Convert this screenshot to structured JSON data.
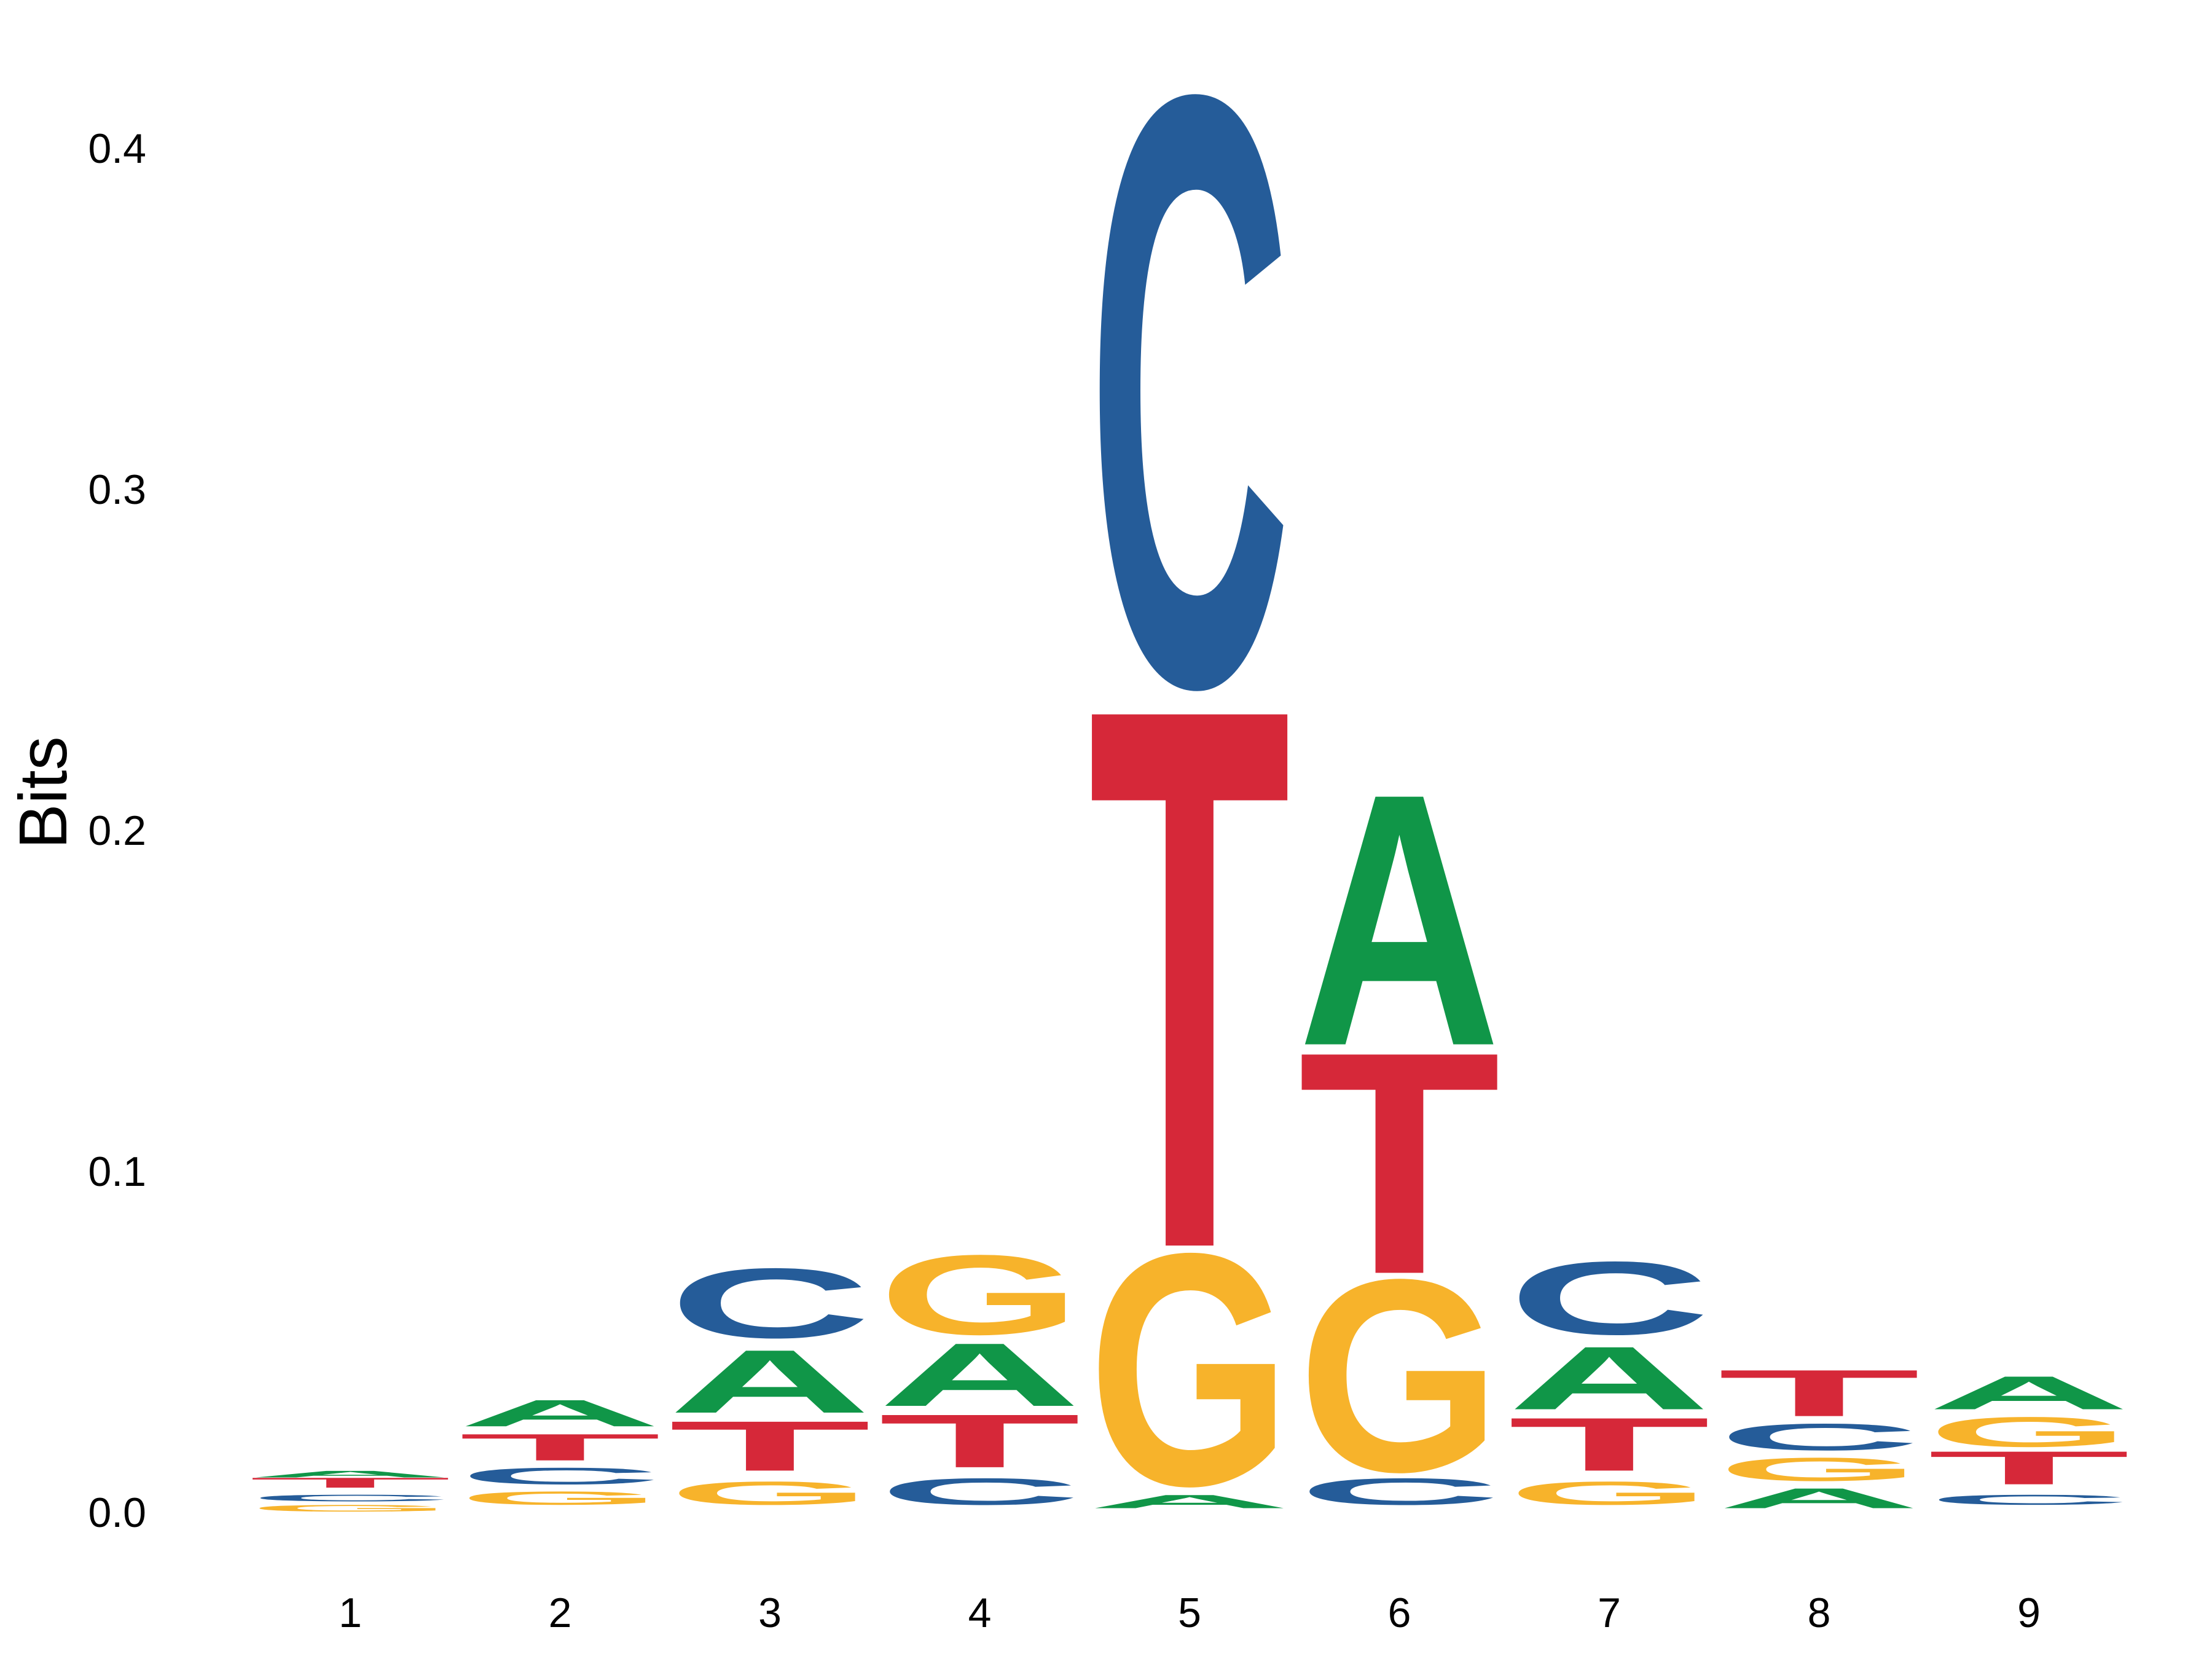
{
  "chart_data": {
    "type": "sequence-logo",
    "ylabel": "Bits",
    "ylim": [
      0,
      0.44
    ],
    "yticks": [
      "0.0",
      "0.1",
      "0.2",
      "0.3",
      "0.4"
    ],
    "ytick_values": [
      0,
      0.1,
      0.2,
      0.3,
      0.4
    ],
    "positions": [
      "1",
      "2",
      "3",
      "4",
      "5",
      "6",
      "7",
      "8",
      "9"
    ],
    "grid": false,
    "legend": "none",
    "colors": {
      "A": "#109648",
      "C": "#255C99",
      "G": "#F7B32B",
      "T": "#D62839"
    },
    "columns": [
      {
        "position": "1",
        "letters": [
          {
            "base": "G",
            "low": 0.0,
            "high": 0.002
          },
          {
            "base": "C",
            "low": 0.003,
            "high": 0.005
          },
          {
            "base": "T",
            "low": 0.007,
            "high": 0.01
          },
          {
            "base": "A",
            "low": 0.01,
            "high": 0.012
          }
        ]
      },
      {
        "position": "2",
        "letters": [
          {
            "base": "G",
            "low": 0.002,
            "high": 0.006
          },
          {
            "base": "C",
            "low": 0.008,
            "high": 0.013
          },
          {
            "base": "T",
            "low": 0.015,
            "high": 0.023
          },
          {
            "base": "A",
            "low": 0.025,
            "high": 0.033
          }
        ]
      },
      {
        "position": "3",
        "letters": [
          {
            "base": "G",
            "low": 0.002,
            "high": 0.009
          },
          {
            "base": "T",
            "low": 0.012,
            "high": 0.027
          },
          {
            "base": "A",
            "low": 0.029,
            "high": 0.048
          },
          {
            "base": "C",
            "low": 0.051,
            "high": 0.072
          }
        ]
      },
      {
        "position": "4",
        "letters": [
          {
            "base": "C",
            "low": 0.002,
            "high": 0.01
          },
          {
            "base": "T",
            "low": 0.013,
            "high": 0.029
          },
          {
            "base": "A",
            "low": 0.031,
            "high": 0.05
          },
          {
            "base": "G",
            "low": 0.052,
            "high": 0.076
          }
        ]
      },
      {
        "position": "5",
        "letters": [
          {
            "base": "A",
            "low": 0.001,
            "high": 0.005
          },
          {
            "base": "G",
            "low": 0.008,
            "high": 0.078
          },
          {
            "base": "T",
            "low": 0.078,
            "high": 0.241
          },
          {
            "base": "C",
            "low": 0.243,
            "high": 0.421
          }
        ]
      },
      {
        "position": "6",
        "letters": [
          {
            "base": "C",
            "low": 0.002,
            "high": 0.01
          },
          {
            "base": "G",
            "low": 0.012,
            "high": 0.07
          },
          {
            "base": "T",
            "low": 0.07,
            "high": 0.137
          },
          {
            "base": "A",
            "low": 0.137,
            "high": 0.213
          }
        ]
      },
      {
        "position": "7",
        "letters": [
          {
            "base": "G",
            "low": 0.002,
            "high": 0.009
          },
          {
            "base": "T",
            "low": 0.012,
            "high": 0.028
          },
          {
            "base": "A",
            "low": 0.03,
            "high": 0.049
          },
          {
            "base": "C",
            "low": 0.052,
            "high": 0.074
          }
        ]
      },
      {
        "position": "8",
        "letters": [
          {
            "base": "A",
            "low": 0.001,
            "high": 0.007
          },
          {
            "base": "G",
            "low": 0.009,
            "high": 0.016
          },
          {
            "base": "C",
            "low": 0.018,
            "high": 0.026
          },
          {
            "base": "T",
            "low": 0.028,
            "high": 0.042
          }
        ]
      },
      {
        "position": "9",
        "letters": [
          {
            "base": "C",
            "low": 0.002,
            "high": 0.005
          },
          {
            "base": "T",
            "low": 0.008,
            "high": 0.018
          },
          {
            "base": "G",
            "low": 0.019,
            "high": 0.028
          },
          {
            "base": "A",
            "low": 0.03,
            "high": 0.04
          }
        ]
      }
    ]
  }
}
